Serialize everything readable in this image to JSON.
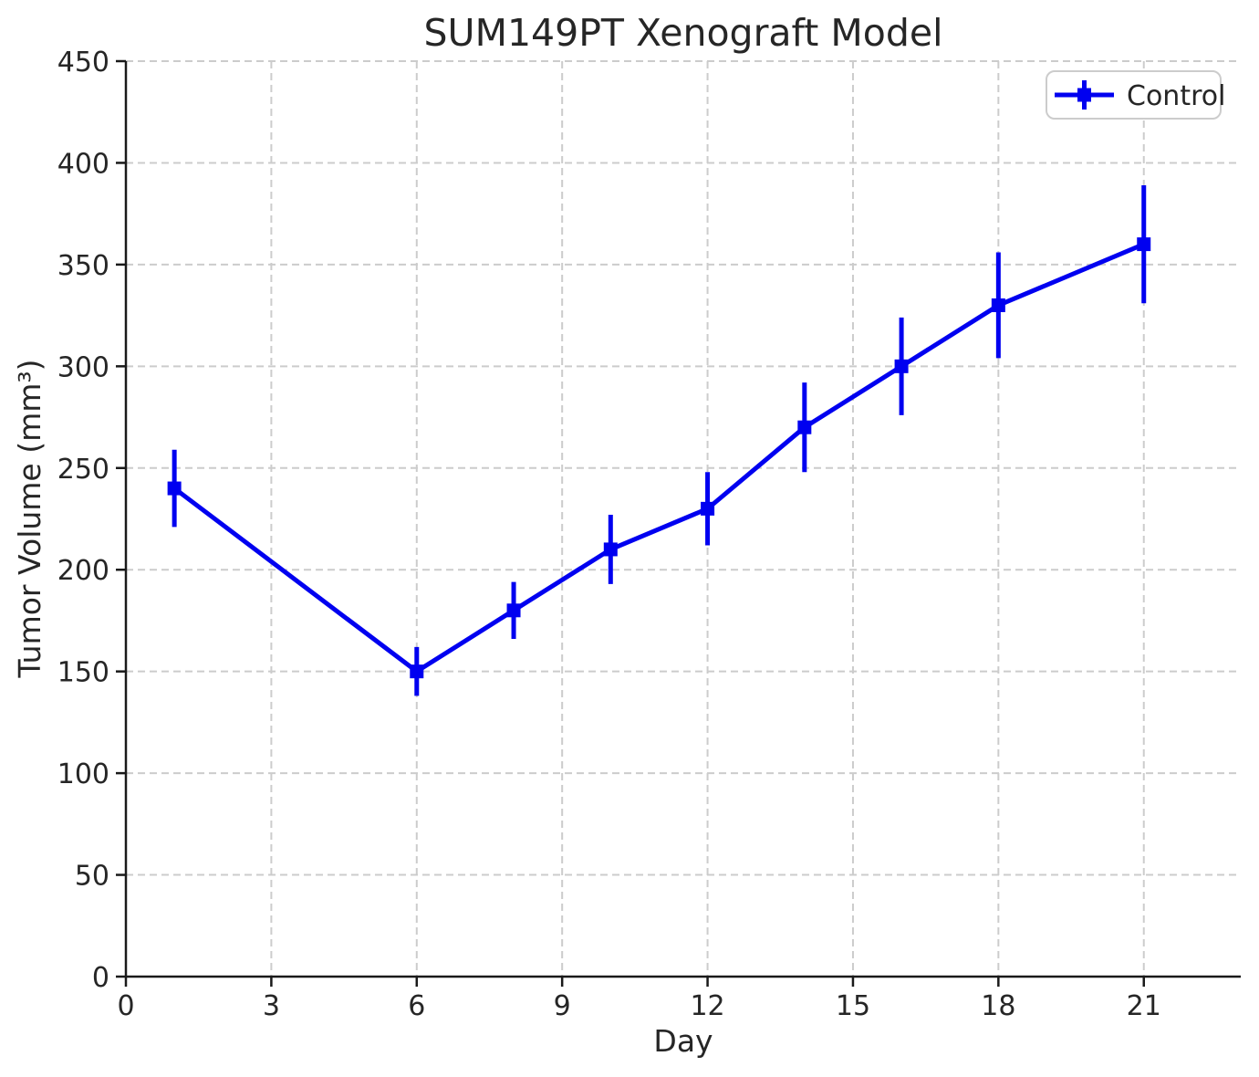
{
  "chart_data": {
    "type": "line",
    "title": "SUM149PT Xenograft Model",
    "xlabel": "Day",
    "ylabel": "Tumor Volume (mm³)",
    "xlim": [
      0,
      23
    ],
    "ylim": [
      0,
      450
    ],
    "xticks": [
      0,
      3,
      6,
      9,
      12,
      15,
      18,
      21
    ],
    "yticks": [
      0,
      50,
      100,
      150,
      200,
      250,
      300,
      350,
      400,
      450
    ],
    "grid": true,
    "grid_style": "dashed",
    "legend_position": "upper right",
    "series": [
      {
        "name": "Control",
        "color": "#0000f0",
        "marker": "square",
        "line_style": "solid",
        "error_caps": false,
        "x": [
          1,
          6,
          8,
          10,
          12,
          14,
          16,
          18,
          21
        ],
        "y": [
          240,
          150,
          180,
          210,
          230,
          270,
          300,
          330,
          360
        ],
        "yerr": [
          19,
          12,
          14,
          17,
          18,
          22,
          24,
          26,
          29
        ]
      }
    ]
  },
  "colors": {
    "series_blue": "#0000f0",
    "grid": "#cccccc",
    "spine": "#1a1a1a",
    "text": "#262626",
    "legend_border": "#cccccc",
    "background": "#ffffff"
  }
}
